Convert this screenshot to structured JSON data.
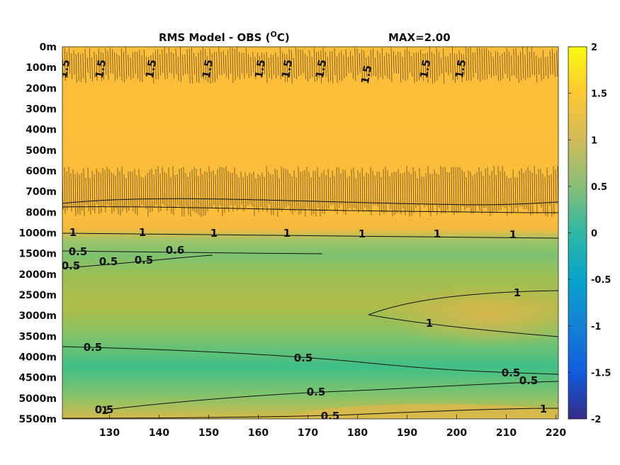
{
  "chart_data": {
    "type": "heatmap",
    "title": "RMS Model - OBS (",
    "title_unit_sup": "O",
    "title_unit_tail": "C)",
    "max_label": "MAX=2.00",
    "x_ticks": [
      "130",
      "140",
      "150",
      "160",
      "170",
      "180",
      "190",
      "200",
      "210",
      "220"
    ],
    "x_tick_values": [
      130,
      140,
      150,
      160,
      170,
      180,
      190,
      200,
      210,
      220
    ],
    "xlim": [
      120.5,
      220.5
    ],
    "y_ticks": [
      "0m",
      "100m",
      "200m",
      "300m",
      "400m",
      "500m",
      "600m",
      "700m",
      "800m",
      "1000m",
      "1500m",
      "2000m",
      "2500m",
      "3000m",
      "3500m",
      "4000m",
      "4500m",
      "5000m",
      "5500m"
    ],
    "colorbar": {
      "range": [
        -2,
        2
      ],
      "ticks": [
        "2",
        "1.5",
        "1",
        "0.5",
        "0",
        "-0.5",
        "-1",
        "-1.5",
        "-2"
      ],
      "tick_values": [
        2,
        1.5,
        1,
        0.5,
        0,
        -0.5,
        -1,
        -1.5,
        -2
      ],
      "colormap": "parula",
      "colors": [
        "#352a87",
        "#0f5cdd",
        "#1481d6",
        "#06a4ca",
        "#2eb7a4",
        "#87bf77",
        "#d1bb59",
        "#fec832",
        "#f9fb0e"
      ]
    },
    "contour_labels": [
      "1.5",
      "1.5",
      "1.5",
      "1.5",
      "1.5",
      "1.5",
      "1.5",
      "1.5",
      "1.5",
      "1.5",
      "1",
      "1",
      "1",
      "1",
      "1",
      "1",
      "1",
      "0.5",
      "0.5",
      "0.5",
      "0.5",
      "0.6",
      "1",
      "1",
      "0.5",
      "0.5",
      "0.5",
      "0.5",
      "0.5",
      "0.5",
      "0.5",
      "1",
      "1"
    ],
    "grid": false,
    "legend": "colorbar-right"
  }
}
